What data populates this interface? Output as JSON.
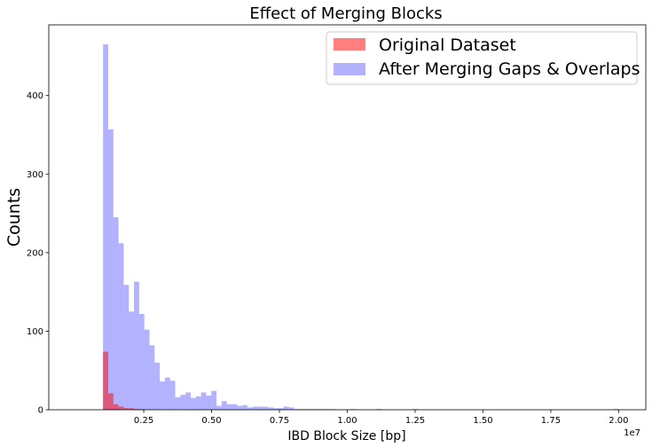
{
  "chart_data": {
    "type": "bar",
    "title": "Effect of Merging Blocks",
    "xlabel": "IBD Block Size [bp]",
    "ylabel": "Counts",
    "x_scale_label": "1e7",
    "xlim": [
      -1000000,
      21000000
    ],
    "ylim": [
      0,
      490
    ],
    "xticks": [
      2500000,
      5000000,
      7500000,
      10000000,
      12500000,
      15000000,
      17500000,
      20000000
    ],
    "xtick_labels": [
      "0.25",
      "0.50",
      "0.75",
      "1.00",
      "1.25",
      "1.50",
      "1.75",
      "2.00"
    ],
    "yticks": [
      0,
      100,
      200,
      300,
      400
    ],
    "ytick_labels": [
      "0",
      "100",
      "200",
      "300",
      "400"
    ],
    "legend_position": "upper-right",
    "grid": false,
    "series": [
      {
        "name": "Original Dataset",
        "color": "#ff0000",
        "alpha": 0.5,
        "bin_start": 1000000,
        "bin_width": 190000,
        "counts": [
          74,
          21,
          7,
          4,
          2,
          2,
          1,
          1
        ]
      },
      {
        "name": "After Merging Gaps & Overlaps",
        "color": "#0000ff",
        "alpha": 0.3,
        "bin_start": 1000000,
        "bin_width": 190000,
        "counts": [
          465,
          357,
          245,
          212,
          159,
          125,
          163,
          122,
          102,
          82,
          60,
          36,
          41,
          37,
          16,
          19,
          22,
          15,
          17,
          22,
          18,
          24,
          5,
          11,
          7,
          7,
          5,
          6,
          3,
          4,
          4,
          4,
          3,
          2,
          2,
          4,
          3,
          1,
          1,
          1,
          1,
          1,
          1,
          1,
          1,
          0,
          0,
          0,
          1,
          0,
          0,
          0,
          0,
          1,
          0,
          0,
          0,
          0,
          0,
          0,
          1,
          0,
          0,
          0,
          0,
          0,
          0,
          0,
          0,
          0,
          0,
          0,
          0,
          0,
          0,
          0,
          0,
          0,
          0,
          0,
          0,
          0,
          0,
          0,
          0,
          0,
          0,
          0,
          0,
          0,
          0,
          0,
          0,
          0,
          0,
          0,
          0,
          0,
          0,
          1
        ]
      }
    ]
  }
}
